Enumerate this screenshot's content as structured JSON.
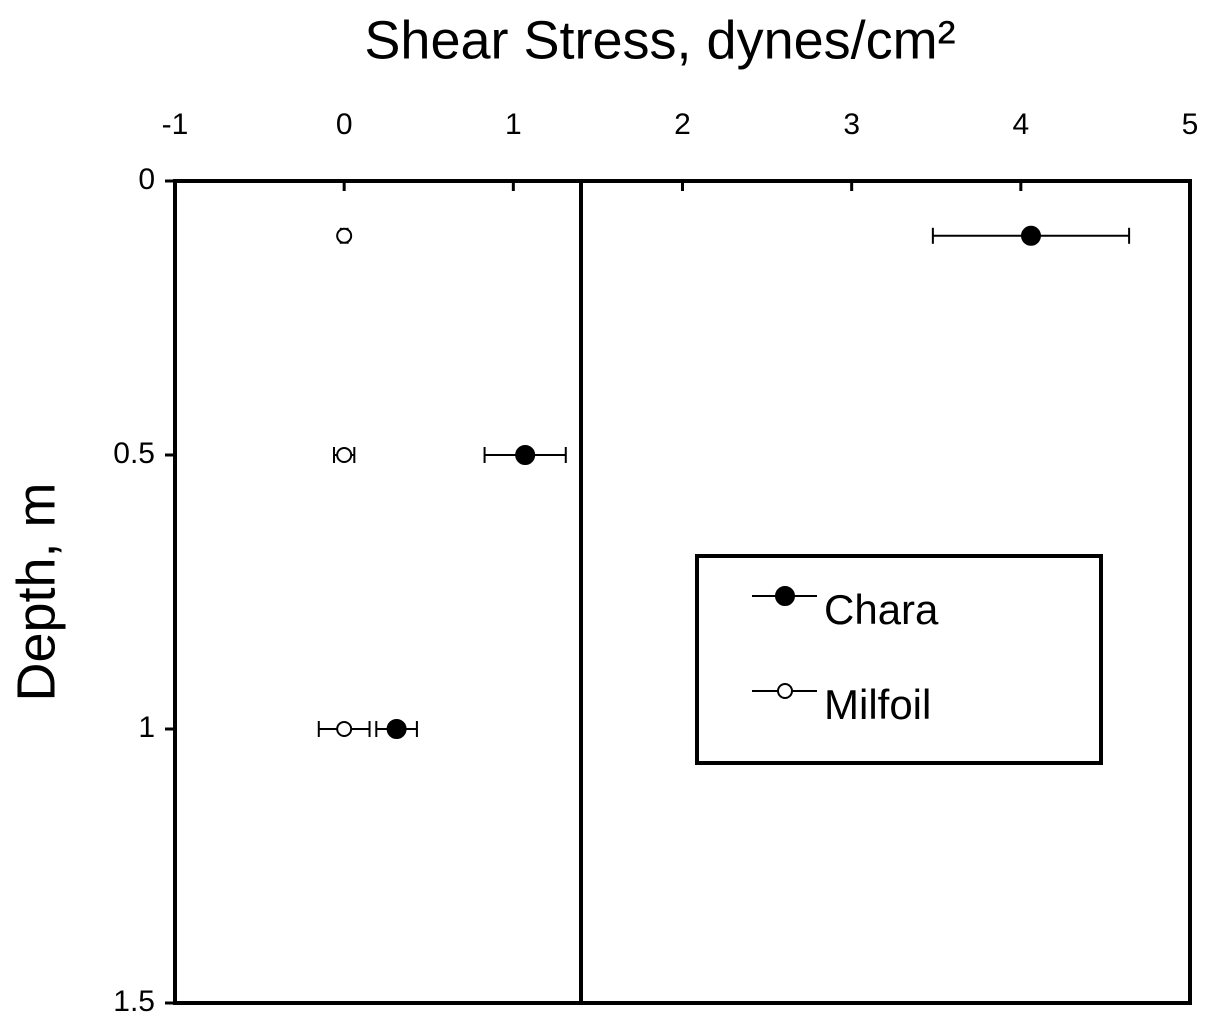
{
  "chart_data": {
    "type": "scatter",
    "title": "Shear Stress, dynes/cm²",
    "y_label": "Depth, m",
    "xlim": [
      -1,
      5
    ],
    "xticks": [
      -1,
      0,
      1,
      2,
      3,
      4,
      5
    ],
    "ylim": [
      0,
      1.5
    ],
    "yticks": [
      0,
      0.5,
      1,
      1.5
    ],
    "y_inverted": true,
    "x_axis_position": "top",
    "vline": 1.4,
    "legend": "right",
    "series": [
      {
        "name": "Chara",
        "color": "#000000",
        "marker_fill": "#000000",
        "x": [
          4.06,
          1.07,
          0.31
        ],
        "y": [
          0.1,
          0.5,
          1
        ],
        "xerr": [
          0.58,
          0.24,
          0.12
        ]
      },
      {
        "name": "Milfoil",
        "color": "#000000",
        "marker_fill": "#ffffff",
        "x": [
          0,
          0,
          0
        ],
        "y": [
          0.1,
          0.5,
          1
        ],
        "xerr": [
          0.02,
          0.06,
          0.15
        ]
      }
    ]
  }
}
